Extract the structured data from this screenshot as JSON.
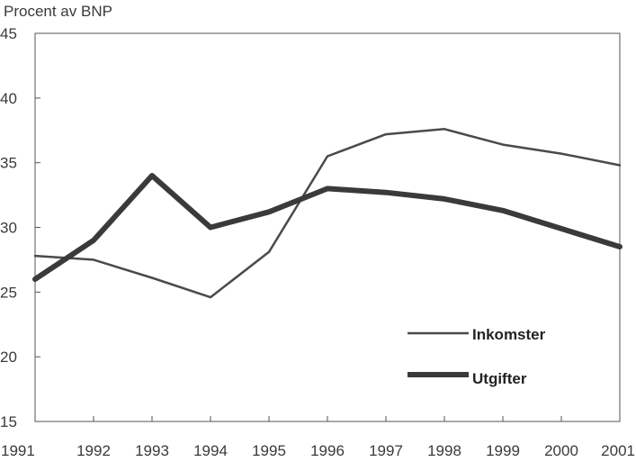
{
  "chart_data": {
    "type": "line",
    "ylabel": "Procent av BNP",
    "x": [
      "1991",
      "1992",
      "1993",
      "1994",
      "1995",
      "1996",
      "1997",
      "1998",
      "1999",
      "2000",
      "2001"
    ],
    "yticks": [
      "45",
      "40",
      "35",
      "30",
      "25",
      "20",
      "15"
    ],
    "ylim": [
      15,
      45
    ],
    "grid": false,
    "legend_position": "bottom-right",
    "series": [
      {
        "name": "Inkomster",
        "color": "#4a4a4a",
        "values": [
          27.8,
          27.5,
          26.1,
          24.6,
          28.1,
          35.5,
          37.2,
          37.6,
          36.4,
          35.7,
          34.8
        ]
      },
      {
        "name": "Utgifter",
        "color": "#3a3a3a",
        "values": [
          26.0,
          29.0,
          34.0,
          30.0,
          31.2,
          33.0,
          32.7,
          32.2,
          31.3,
          29.9,
          28.5
        ]
      }
    ]
  }
}
